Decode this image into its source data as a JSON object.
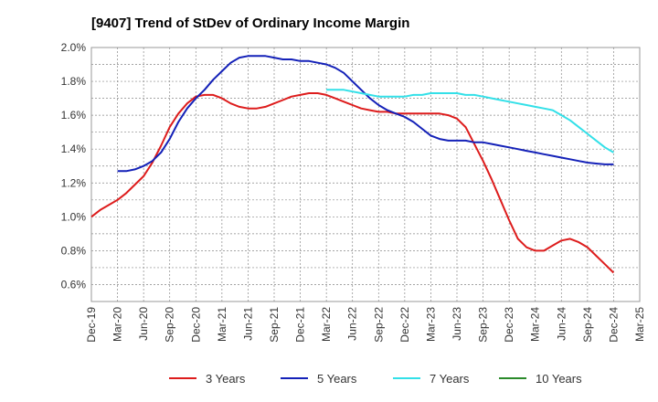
{
  "chart_data": {
    "type": "line",
    "title": "[9407]  Trend of StDev of Ordinary Income Margin",
    "xlabel": "",
    "ylabel": "",
    "x_ticks": [
      "Dec-19",
      "Mar-20",
      "Jun-20",
      "Sep-20",
      "Dec-20",
      "Mar-21",
      "Jun-21",
      "Sep-21",
      "Dec-21",
      "Mar-22",
      "Jun-22",
      "Sep-22",
      "Dec-22",
      "Mar-23",
      "Jun-23",
      "Sep-23",
      "Dec-23",
      "Mar-24",
      "Jun-24",
      "Sep-24",
      "Dec-24",
      "Mar-25"
    ],
    "y_ticks": [
      "0.6%",
      "0.8%",
      "1.0%",
      "1.2%",
      "1.4%",
      "1.6%",
      "1.8%",
      "2.0%"
    ],
    "ylim": [
      0.5,
      2.0
    ],
    "grid": true,
    "legend_position": "bottom",
    "series": [
      {
        "name": "3 Years",
        "color": "#dd1c1c",
        "x": [
          "2019-12",
          "2020-01",
          "2020-02",
          "2020-03",
          "2020-04",
          "2020-05",
          "2020-06",
          "2020-07",
          "2020-08",
          "2020-09",
          "2020-10",
          "2020-11",
          "2020-12",
          "2021-01",
          "2021-02",
          "2021-03",
          "2021-04",
          "2021-05",
          "2021-06",
          "2021-07",
          "2021-08",
          "2021-09",
          "2021-10",
          "2021-11",
          "2021-12",
          "2022-01",
          "2022-02",
          "2022-03",
          "2022-04",
          "2022-05",
          "2022-06",
          "2022-07",
          "2022-08",
          "2022-09",
          "2022-10",
          "2022-11",
          "2022-12",
          "2023-01",
          "2023-02",
          "2023-03",
          "2023-04",
          "2023-05",
          "2023-06",
          "2023-07",
          "2023-08",
          "2023-09",
          "2023-10",
          "2023-11",
          "2023-12",
          "2024-01",
          "2024-02",
          "2024-03",
          "2024-04",
          "2024-05",
          "2024-06",
          "2024-07",
          "2024-08",
          "2024-09",
          "2024-10",
          "2024-11",
          "2024-12"
        ],
        "values": [
          1.0,
          1.04,
          1.07,
          1.1,
          1.14,
          1.19,
          1.24,
          1.32,
          1.42,
          1.53,
          1.61,
          1.67,
          1.71,
          1.72,
          1.72,
          1.7,
          1.67,
          1.65,
          1.64,
          1.64,
          1.65,
          1.67,
          1.69,
          1.71,
          1.72,
          1.73,
          1.73,
          1.72,
          1.7,
          1.68,
          1.66,
          1.64,
          1.63,
          1.62,
          1.62,
          1.61,
          1.61,
          1.61,
          1.61,
          1.61,
          1.61,
          1.6,
          1.58,
          1.53,
          1.43,
          1.33,
          1.22,
          1.1,
          0.98,
          0.87,
          0.82,
          0.8,
          0.8,
          0.83,
          0.86,
          0.87,
          0.85,
          0.82,
          0.77,
          0.72,
          0.67
        ]
      },
      {
        "name": "5 Years",
        "color": "#1421b8",
        "x": [
          "2020-03",
          "2020-04",
          "2020-05",
          "2020-06",
          "2020-07",
          "2020-08",
          "2020-09",
          "2020-10",
          "2020-11",
          "2020-12",
          "2021-01",
          "2021-02",
          "2021-03",
          "2021-04",
          "2021-05",
          "2021-06",
          "2021-07",
          "2021-08",
          "2021-09",
          "2021-10",
          "2021-11",
          "2021-12",
          "2022-01",
          "2022-02",
          "2022-03",
          "2022-04",
          "2022-05",
          "2022-06",
          "2022-07",
          "2022-08",
          "2022-09",
          "2022-10",
          "2022-11",
          "2022-12",
          "2023-01",
          "2023-02",
          "2023-03",
          "2023-04",
          "2023-05",
          "2023-06",
          "2023-07",
          "2023-08",
          "2023-09",
          "2023-10",
          "2023-11",
          "2023-12",
          "2024-01",
          "2024-02",
          "2024-03",
          "2024-04",
          "2024-05",
          "2024-06",
          "2024-07",
          "2024-08",
          "2024-09",
          "2024-10",
          "2024-11",
          "2024-12"
        ],
        "values": [
          1.27,
          1.27,
          1.28,
          1.3,
          1.33,
          1.38,
          1.46,
          1.56,
          1.64,
          1.7,
          1.75,
          1.81,
          1.86,
          1.91,
          1.94,
          1.95,
          1.95,
          1.95,
          1.94,
          1.93,
          1.93,
          1.92,
          1.92,
          1.91,
          1.9,
          1.88,
          1.85,
          1.8,
          1.75,
          1.7,
          1.66,
          1.63,
          1.61,
          1.59,
          1.56,
          1.52,
          1.48,
          1.46,
          1.45,
          1.45,
          1.45,
          1.44,
          1.44,
          1.43,
          1.42,
          1.41,
          1.4,
          1.39,
          1.38,
          1.37,
          1.36,
          1.35,
          1.34,
          1.33,
          1.32,
          1.315,
          1.31,
          1.31
        ]
      },
      {
        "name": "7 Years",
        "color": "#33e0e8",
        "x": [
          "2022-03",
          "2022-04",
          "2022-05",
          "2022-06",
          "2022-07",
          "2022-08",
          "2022-09",
          "2022-10",
          "2022-11",
          "2022-12",
          "2023-01",
          "2023-02",
          "2023-03",
          "2023-04",
          "2023-05",
          "2023-06",
          "2023-07",
          "2023-08",
          "2023-09",
          "2023-10",
          "2023-11",
          "2023-12",
          "2024-01",
          "2024-02",
          "2024-03",
          "2024-04",
          "2024-05",
          "2024-06",
          "2024-07",
          "2024-08",
          "2024-09",
          "2024-10",
          "2024-11",
          "2024-12"
        ],
        "values": [
          1.75,
          1.75,
          1.75,
          1.74,
          1.73,
          1.72,
          1.71,
          1.71,
          1.71,
          1.71,
          1.72,
          1.72,
          1.73,
          1.73,
          1.73,
          1.73,
          1.72,
          1.72,
          1.71,
          1.7,
          1.69,
          1.68,
          1.67,
          1.66,
          1.65,
          1.64,
          1.63,
          1.6,
          1.57,
          1.53,
          1.49,
          1.45,
          1.41,
          1.38
        ]
      },
      {
        "name": "10 Years",
        "color": "#2a8a2a",
        "x": [],
        "values": []
      }
    ]
  }
}
